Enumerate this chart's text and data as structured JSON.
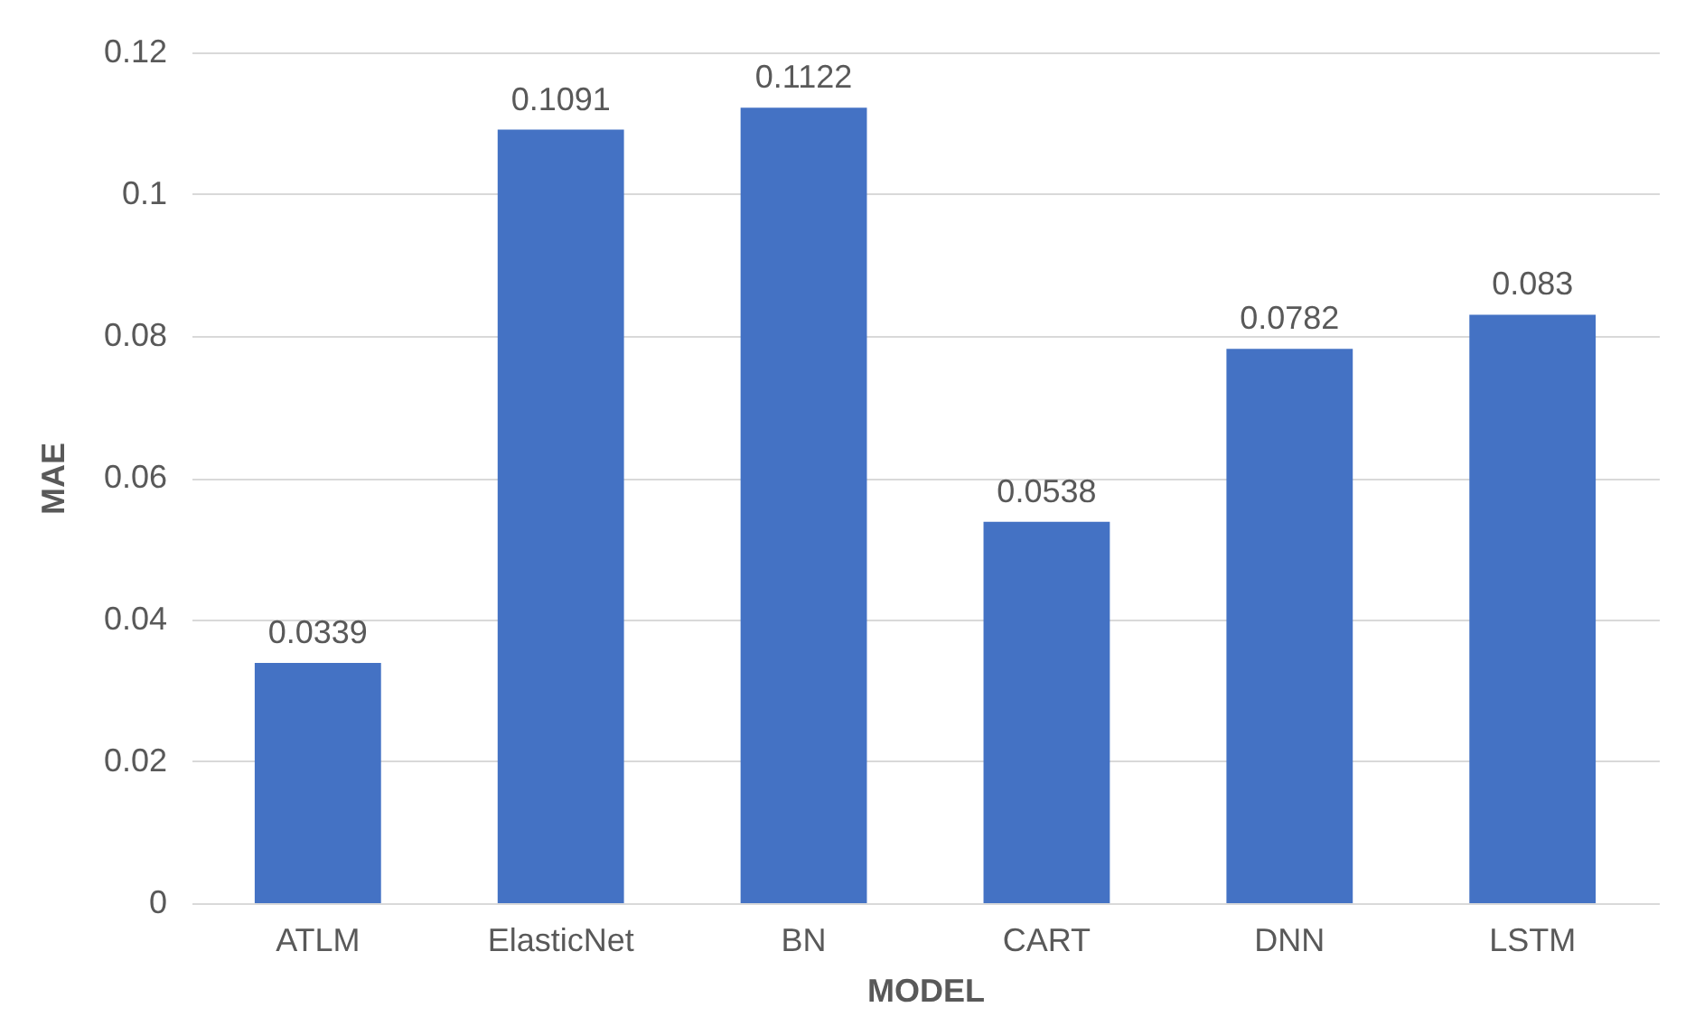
{
  "chart_data": {
    "type": "bar",
    "xlabel": "MODEL",
    "ylabel": "MAE",
    "categories": [
      "ATLM",
      "ElasticNet",
      "BN",
      "CART",
      "DNN",
      "LSTM"
    ],
    "values": [
      0.0339,
      0.1091,
      0.1122,
      0.0538,
      0.0782,
      0.083
    ],
    "color": "#4472c4",
    "ylim": [
      0,
      0.12
    ],
    "yticks": [
      0,
      0.02,
      0.04,
      0.06,
      0.08,
      0.1,
      0.12
    ],
    "grid": "y",
    "data_labels": true
  }
}
